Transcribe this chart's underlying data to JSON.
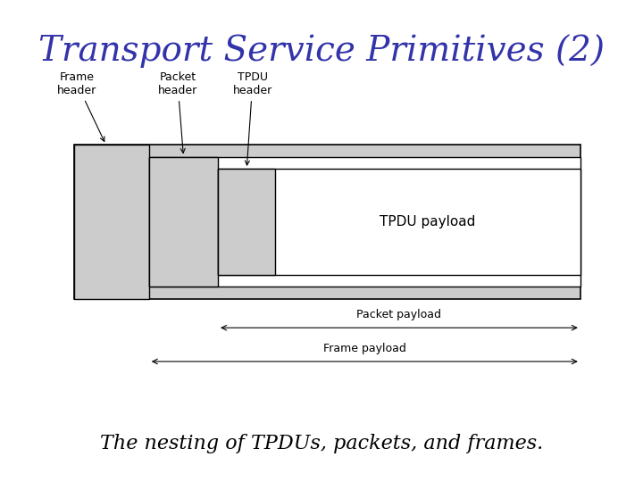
{
  "title": "Transport Service Primitives (2)",
  "title_color": "#3333aa",
  "title_fontsize": 28,
  "subtitle": "The nesting of TPDUs, packets, and frames.",
  "subtitle_fontsize": 16,
  "bg_color": "#ffffff",
  "gray_light": "#cccccc",
  "gray_medium": "#bbbbbb",
  "frame_header_label": "Frame\nheader",
  "packet_header_label": "Packet\nheader",
  "tpdu_header_label": "TPDU\nheader",
  "tpdu_payload_label": "TPDU payload",
  "packet_payload_label": "Packet payload",
  "frame_payload_label": "Frame payload"
}
